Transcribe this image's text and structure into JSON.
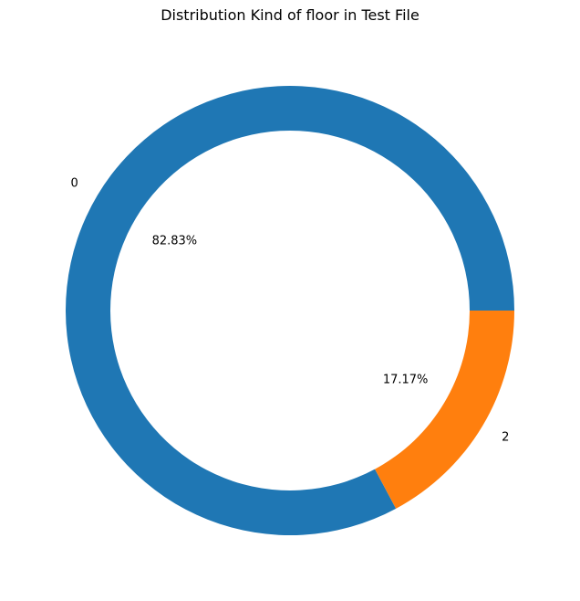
{
  "chart_data": {
    "type": "pie",
    "title": "Distribution Kind of floor in Test File",
    "slices": [
      {
        "label": "0",
        "value": 82.83,
        "pct_label": "82.83%",
        "color": "#1f77b4"
      },
      {
        "label": "2",
        "value": 17.17,
        "pct_label": "17.17%",
        "color": "#ff7f0e"
      }
    ],
    "donut": true,
    "start_angle_deg": 0,
    "direction": "counterclockwise"
  }
}
